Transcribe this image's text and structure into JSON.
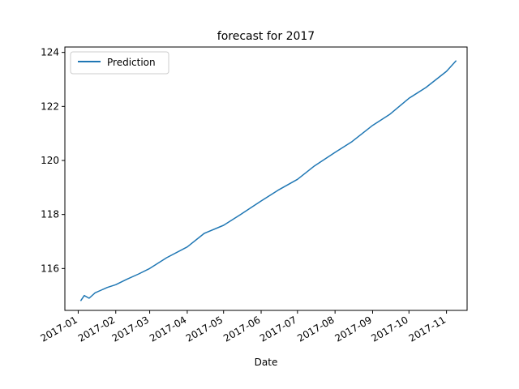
{
  "chart_data": {
    "type": "line",
    "title": "forecast for 2017",
    "xlabel": "Date",
    "ylabel": "",
    "x_tick_labels": [
      "2017-01",
      "2017-02",
      "2017-03",
      "2017-04",
      "2017-05",
      "2017-06",
      "2017-07",
      "2017-08",
      "2017-09",
      "2017-10",
      "2017-11"
    ],
    "y_tick_labels": [
      "116",
      "118",
      "120",
      "122",
      "124"
    ],
    "xlim": [
      "2016-12-21",
      "2017-11-18"
    ],
    "ylim": [
      114.45,
      124.2
    ],
    "grid": false,
    "legend_position": "top-left",
    "series": [
      {
        "name": "Prediction",
        "color": "#1f77b4",
        "x": [
          "2017-01-03",
          "2017-01-06",
          "2017-01-10",
          "2017-01-15",
          "2017-01-20",
          "2017-01-25",
          "2017-02-01",
          "2017-02-10",
          "2017-02-20",
          "2017-03-01",
          "2017-03-15",
          "2017-04-01",
          "2017-04-15",
          "2017-05-01",
          "2017-05-15",
          "2017-06-01",
          "2017-06-15",
          "2017-07-01",
          "2017-07-15",
          "2017-08-01",
          "2017-08-15",
          "2017-09-01",
          "2017-09-15",
          "2017-10-01",
          "2017-10-15",
          "2017-11-01",
          "2017-11-09"
        ],
        "values": [
          114.8,
          115.0,
          114.9,
          115.1,
          115.2,
          115.3,
          115.4,
          115.6,
          115.8,
          116.0,
          116.4,
          116.8,
          117.3,
          117.6,
          118.0,
          118.5,
          118.9,
          119.3,
          119.8,
          120.3,
          120.7,
          121.3,
          121.7,
          122.3,
          122.7,
          123.3,
          123.7
        ]
      }
    ]
  }
}
